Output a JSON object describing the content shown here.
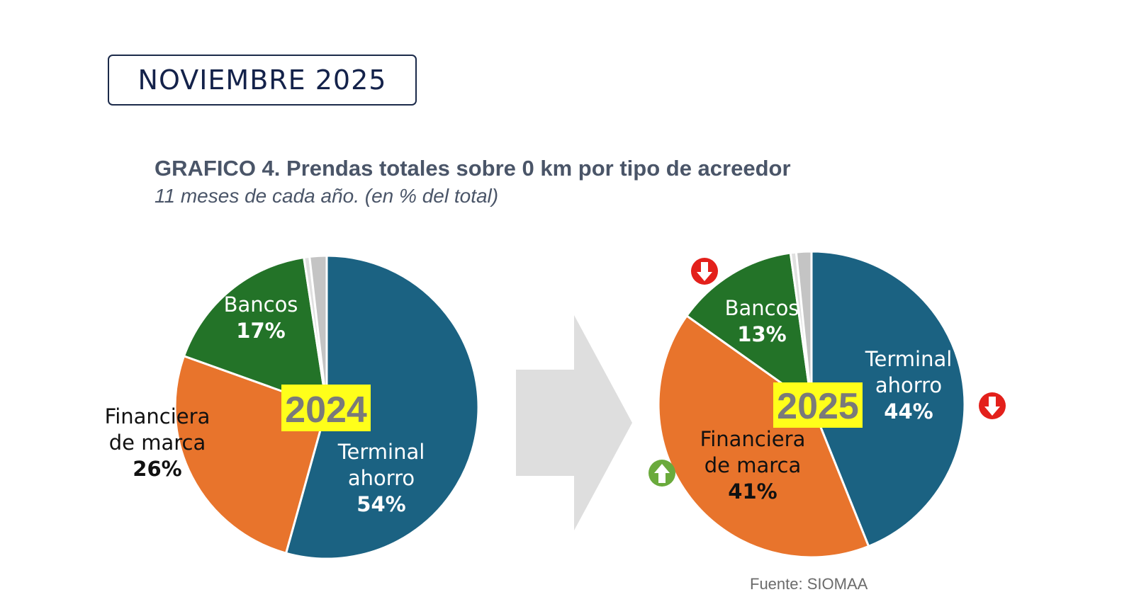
{
  "header": {
    "date_label": "NOVIEMBRE 2025"
  },
  "title": "GRAFICO 4. Prendas totales sobre 0 km por tipo de acreedor",
  "subtitle": "11 meses de cada año. (en % del total)",
  "source": "Fuente: SIOMAA",
  "colors": {
    "terminal": "#1b6282",
    "financiera": "#e8742c",
    "bancos": "#237328",
    "otros": "#c4c4c4",
    "otros_light": "#d8d8d8",
    "arrow": "#dedede",
    "year_bg": "#ffff1a",
    "down": "#e3201b",
    "up": "#6aaa3c"
  },
  "chart_data": [
    {
      "type": "pie",
      "year": "2024",
      "slices": [
        {
          "name": "Terminal ahorro",
          "label_lines": [
            "Terminal",
            "ahorro"
          ],
          "pct_label": "54%",
          "value": 54,
          "color": "#1b6282",
          "text_color": "#ffffff"
        },
        {
          "name": "Financiera de marca",
          "label_lines": [
            "Financiera",
            "de marca"
          ],
          "pct_label": "26%",
          "value": 26,
          "color": "#e8742c",
          "text_color": "#111111"
        },
        {
          "name": "Bancos",
          "label_lines": [
            "Bancos"
          ],
          "pct_label": "17%",
          "value": 17,
          "color": "#237328",
          "text_color": "#ffffff"
        },
        {
          "name": "Otros (light)",
          "label_lines": [],
          "pct_label": "",
          "value": 0.6,
          "color": "#e0e0e0",
          "text_color": "#000000"
        },
        {
          "name": "Otros",
          "label_lines": [],
          "pct_label": "",
          "value": 1.8,
          "color": "#c4c4c4",
          "text_color": "#000000"
        }
      ]
    },
    {
      "type": "pie",
      "year": "2025",
      "slices": [
        {
          "name": "Terminal ahorro",
          "label_lines": [
            "Terminal",
            "ahorro"
          ],
          "pct_label": "44%",
          "value": 44,
          "color": "#1b6282",
          "text_color": "#ffffff",
          "trend": "down"
        },
        {
          "name": "Financiera de marca",
          "label_lines": [
            "Financiera",
            "de marca"
          ],
          "pct_label": "41%",
          "value": 41,
          "color": "#e8742c",
          "text_color": "#111111",
          "trend": "up"
        },
        {
          "name": "Bancos",
          "label_lines": [
            "Bancos"
          ],
          "pct_label": "13%",
          "value": 13,
          "color": "#237328",
          "text_color": "#ffffff",
          "trend": "down"
        },
        {
          "name": "Otros (light)",
          "label_lines": [],
          "pct_label": "",
          "value": 0.6,
          "color": "#e0e0e0",
          "text_color": "#000000"
        },
        {
          "name": "Otros",
          "label_lines": [],
          "pct_label": "",
          "value": 1.6,
          "color": "#c4c4c4",
          "text_color": "#000000"
        }
      ]
    }
  ]
}
